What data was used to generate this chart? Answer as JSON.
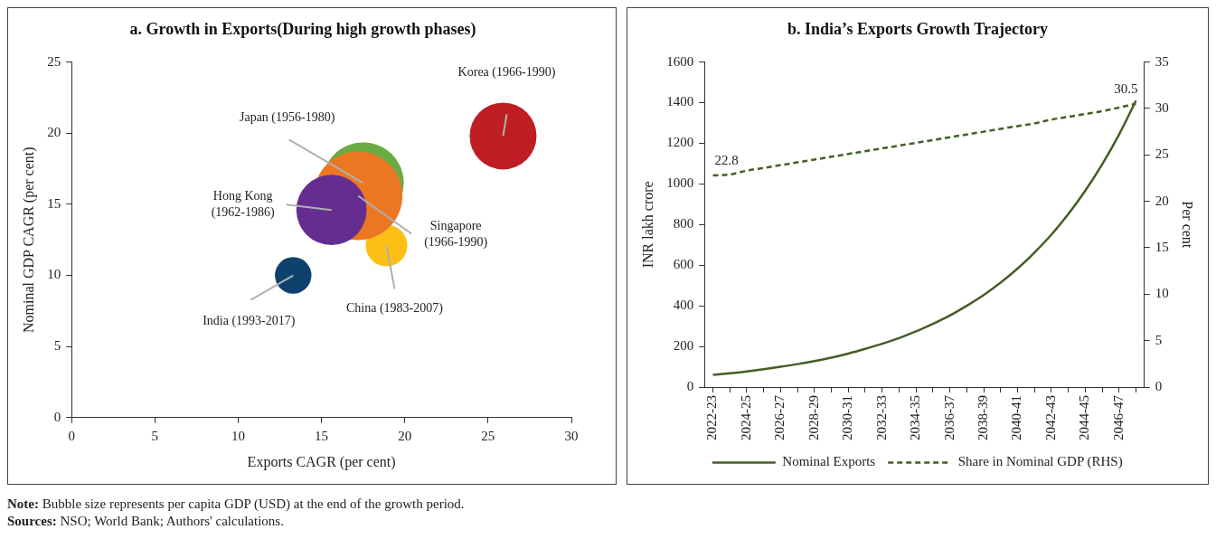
{
  "chart_data": [
    {
      "type": "bubble",
      "title": "a. Growth in Exports(During high growth phases)",
      "xlabel": "Exports CAGR (per cent)",
      "ylabel": "Nominal GDP CAGR (per cent)",
      "xlim": [
        0,
        30
      ],
      "xticks": [
        0,
        5,
        10,
        15,
        20,
        25,
        30
      ],
      "ylim": [
        0,
        25
      ],
      "yticks": [
        0,
        5,
        10,
        15,
        20,
        25
      ],
      "grid": false,
      "series": [
        {
          "name": "Korea (1966-1990)",
          "color": "#be1e23",
          "x": [
            25.9
          ],
          "values": [
            19.8
          ],
          "sizes": [
            0.57
          ]
        },
        {
          "name": "Japan (1956-1980)",
          "color": "#6aac43",
          "x": [
            17.5
          ],
          "values": [
            16.5
          ],
          "sizes": [
            0.84
          ]
        },
        {
          "name": "China (1983-2007)",
          "color": "#fbbf16",
          "x": [
            18.9
          ],
          "values": [
            12.1
          ],
          "sizes": [
            0.22
          ]
        },
        {
          "name": "Singapore (1966-1990)",
          "color": "#ec7723",
          "x": [
            17.2
          ],
          "values": [
            15.6
          ],
          "sizes": [
            1
          ]
        },
        {
          "name": "Hong Kong (1962-1986)",
          "color": "#662d91",
          "x": [
            15.6
          ],
          "values": [
            14.6
          ],
          "sizes": [
            0.63
          ]
        },
        {
          "name": "India (1993-2017)",
          "color": "#0e416e",
          "x": [
            13.3
          ],
          "values": [
            10.0
          ],
          "sizes": [
            0.17
          ]
        }
      ],
      "annotations": [
        "Note: Bubble size represents per capita GDP (USD) at the end of the growth period.",
        "Sources: NSO; World Bank; Authors' calculations."
      ]
    },
    {
      "type": "line",
      "title": "b. India’s Exports Growth Trajectory",
      "ylabel": "INR lakh crore",
      "y2label": "Per cent",
      "ylim": [
        0,
        1600
      ],
      "yticks": [
        0,
        200,
        400,
        600,
        800,
        1000,
        1200,
        1400,
        1600
      ],
      "y2lim": [
        0,
        35
      ],
      "y2ticks": [
        0,
        5,
        10,
        15,
        20,
        25,
        30,
        35
      ],
      "grid": false,
      "legend": "bottom",
      "marker": "none",
      "categories": [
        "2022-23",
        null,
        "2024-25",
        null,
        "2026-27",
        null,
        "2028-29",
        null,
        "2030-31",
        null,
        "2032-33",
        null,
        "2034-35",
        null,
        "2036-37",
        null,
        "2038-39",
        null,
        "2040-41",
        null,
        "2042-43",
        null,
        "2044-45",
        null,
        "2046-47",
        null
      ],
      "series": [
        {
          "name": "Nominal Exports",
          "color": "#445e26",
          "line_style": "solid",
          "values": [
            60,
            68,
            77,
            88,
            100,
            113,
            128,
            145,
            165,
            188,
            213,
            241,
            274,
            311,
            352,
            400,
            453,
            514,
            583,
            662,
            750,
            851,
            966,
            1096,
            1243,
            1410
          ]
        },
        {
          "name": "Share in Nominal GDP (RHS)",
          "color": "#445e26",
          "line_style": "dashed",
          "axis": "y2",
          "values": [
            22.8,
            22.9,
            23.3,
            23.6,
            23.9,
            24.2,
            24.5,
            24.8,
            25.1,
            25.4,
            25.7,
            26.0,
            26.3,
            26.6,
            26.9,
            27.2,
            27.5,
            27.8,
            28.1,
            28.4,
            28.8,
            29.1,
            29.4,
            29.7,
            30.1,
            30.5
          ],
          "value_labels": [
            "22.8",
            null,
            null,
            null,
            null,
            null,
            null,
            null,
            null,
            null,
            null,
            null,
            null,
            null,
            null,
            null,
            null,
            null,
            null,
            null,
            null,
            null,
            null,
            null,
            null,
            "30.5"
          ]
        }
      ]
    }
  ]
}
